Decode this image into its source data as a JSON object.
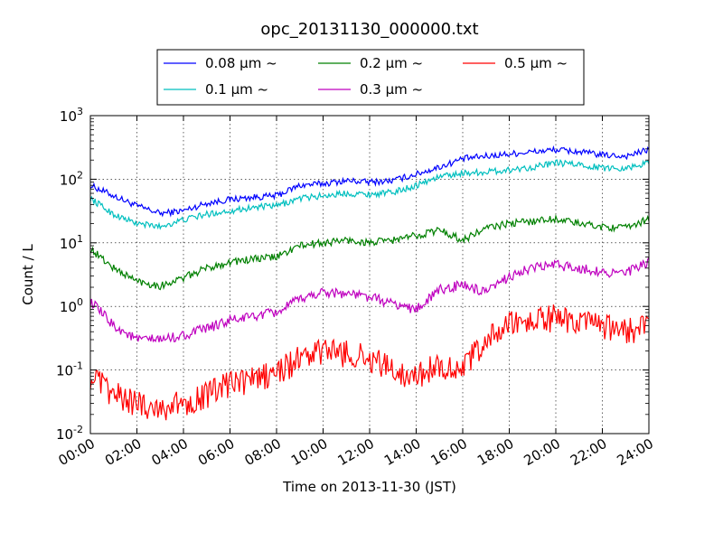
{
  "chart_data": {
    "type": "line",
    "title": "opc_20131130_000000.txt",
    "xlabel": "Time on 2013-11-30 (JST)",
    "ylabel": "Count / L",
    "yscale": "log",
    "ylim": [
      0.01,
      1000
    ],
    "xlim": [
      0,
      24
    ],
    "x_ticks": [
      "00:00",
      "02:00",
      "04:00",
      "06:00",
      "08:00",
      "10:00",
      "12:00",
      "14:00",
      "16:00",
      "18:00",
      "20:00",
      "22:00",
      "24:00"
    ],
    "y_ticks": [
      {
        "base": "10",
        "exp": "-2"
      },
      {
        "base": "10",
        "exp": "-1"
      },
      {
        "base": "10",
        "exp": "0"
      },
      {
        "base": "10",
        "exp": "1"
      },
      {
        "base": "10",
        "exp": "2"
      },
      {
        "base": "10",
        "exp": "3"
      }
    ],
    "grid": true,
    "legend_position": "top-center",
    "x": [
      0,
      1,
      2,
      3,
      4,
      5,
      6,
      7,
      8,
      9,
      10,
      11,
      12,
      13,
      14,
      15,
      16,
      17,
      18,
      19,
      20,
      21,
      22,
      23,
      24
    ],
    "series": [
      {
        "name": "0.08 μm ~",
        "color": "#0000ff",
        "values": [
          80,
          55,
          38,
          29,
          32,
          42,
          48,
          52,
          55,
          80,
          85,
          95,
          90,
          95,
          120,
          155,
          210,
          230,
          250,
          270,
          290,
          270,
          240,
          230,
          290
        ]
      },
      {
        "name": "0.1 μm ~",
        "color": "#00bfbf",
        "values": [
          50,
          28,
          20,
          18,
          23,
          28,
          32,
          36,
          38,
          50,
          55,
          60,
          58,
          62,
          80,
          110,
          125,
          130,
          140,
          155,
          180,
          170,
          150,
          150,
          180
        ]
      },
      {
        "name": "0.2 μm ~",
        "color": "#008000",
        "values": [
          8,
          4,
          2.5,
          2.1,
          2.8,
          4,
          5,
          5.5,
          6,
          9,
          10,
          11,
          10,
          11,
          13,
          16,
          11,
          17,
          20,
          22,
          24,
          20,
          18,
          17,
          24
        ]
      },
      {
        "name": "0.3 μm ~",
        "color": "#bf00bf",
        "values": [
          1.2,
          0.5,
          0.3,
          0.3,
          0.35,
          0.45,
          0.6,
          0.7,
          0.8,
          1.3,
          1.7,
          1.6,
          1.4,
          1.1,
          0.9,
          1.8,
          2.2,
          1.6,
          3,
          4,
          4.5,
          4,
          3.5,
          3.3,
          5
        ]
      },
      {
        "name": "0.5 μm ~",
        "color": "#ff0000",
        "values": [
          0.08,
          0.04,
          0.03,
          0.025,
          0.03,
          0.04,
          0.06,
          0.07,
          0.09,
          0.15,
          0.2,
          0.18,
          0.15,
          0.1,
          0.08,
          0.12,
          0.1,
          0.3,
          0.5,
          0.6,
          0.65,
          0.55,
          0.45,
          0.4,
          0.5
        ]
      }
    ]
  }
}
